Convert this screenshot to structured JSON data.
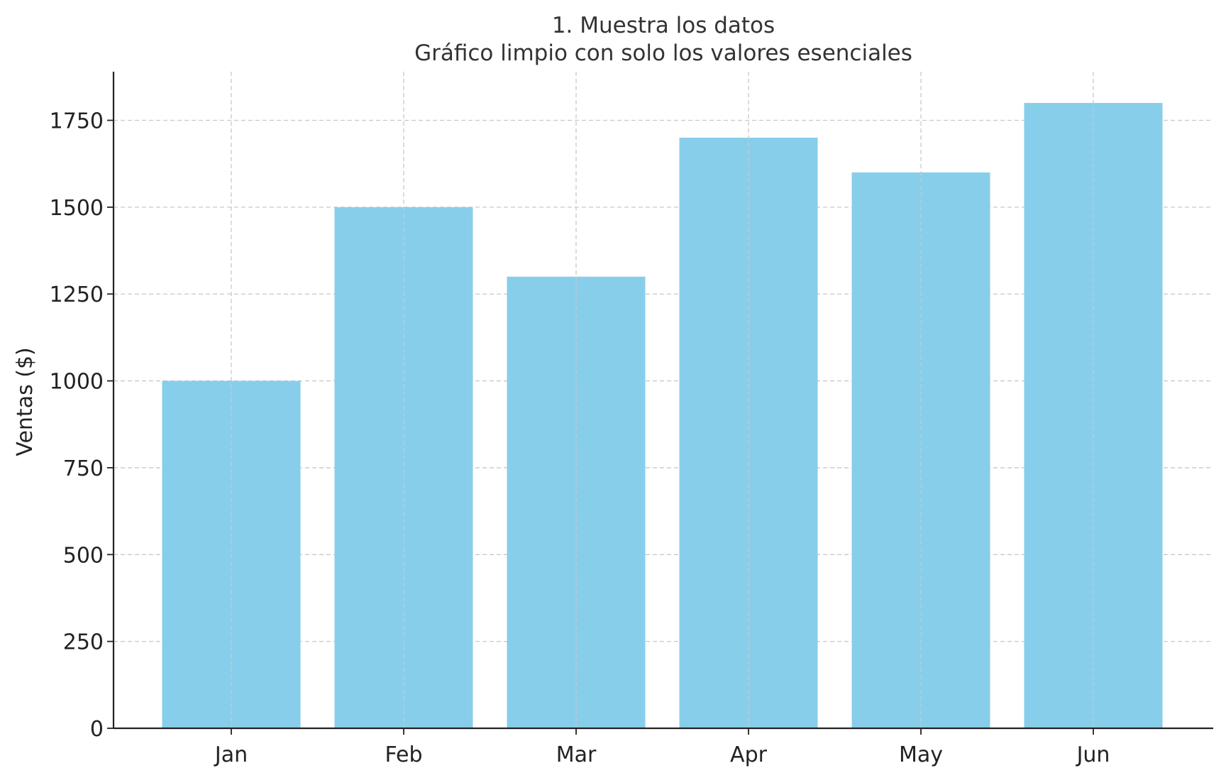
{
  "chart_data": {
    "type": "bar",
    "title": "1. Muestra los datos",
    "subtitle": "Gráfico limpio con solo los valores esenciales",
    "xlabel": "",
    "ylabel": "Ventas ($)",
    "categories": [
      "Jan",
      "Feb",
      "Mar",
      "Apr",
      "May",
      "Jun"
    ],
    "values": [
      1000,
      1500,
      1300,
      1700,
      1600,
      1800
    ],
    "ylim": [
      0,
      1890
    ],
    "yticks": [
      0,
      250,
      500,
      750,
      1000,
      1250,
      1500,
      1750
    ],
    "grid": true,
    "legend": "none",
    "bar_color": "#87CEEB"
  }
}
